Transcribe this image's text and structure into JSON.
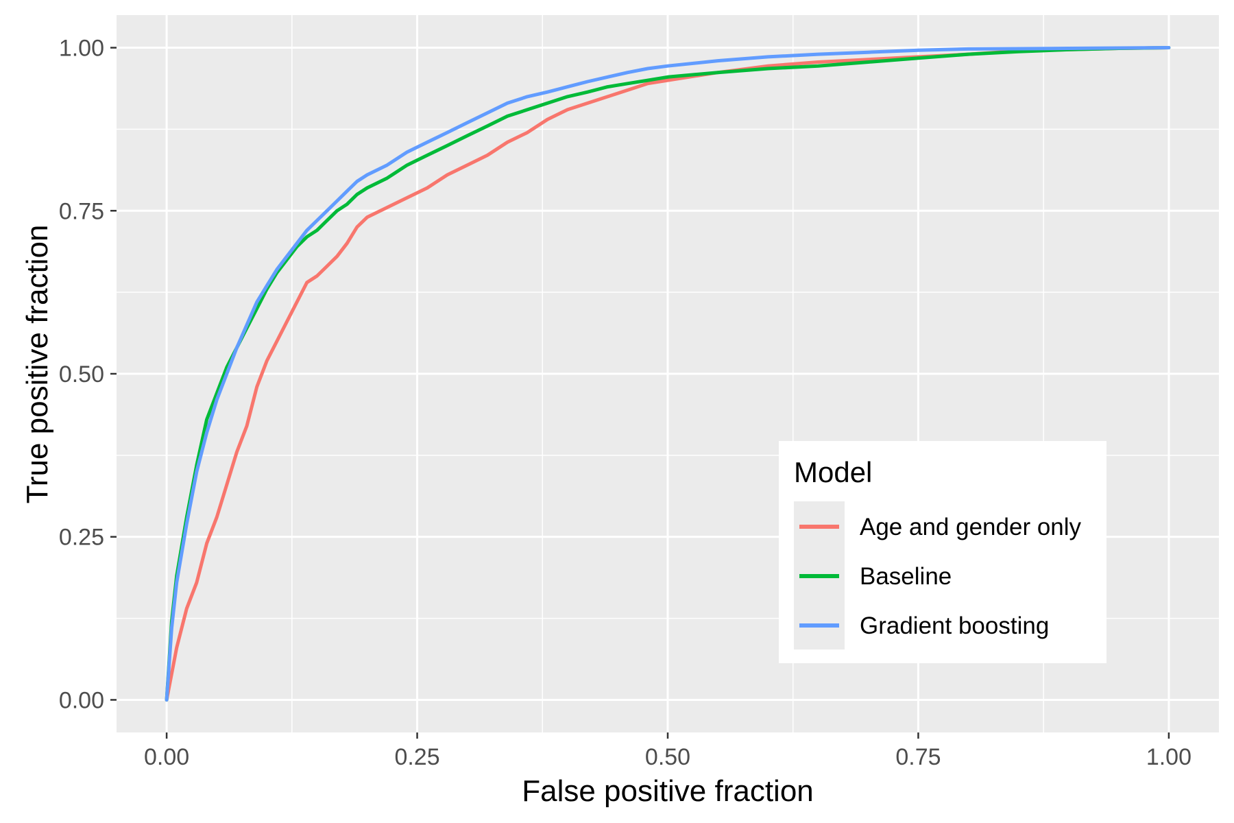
{
  "chart_data": {
    "type": "line",
    "title": "",
    "xlabel": "False positive fraction",
    "ylabel": "True positive fraction",
    "xlim": [
      -0.05,
      1.05
    ],
    "ylim": [
      -0.05,
      1.05
    ],
    "x_ticks": [
      0,
      0.25,
      0.5,
      0.75,
      1
    ],
    "x_tick_labels": [
      "0.00",
      "0.25",
      "0.50",
      "0.75",
      "1.00"
    ],
    "y_ticks": [
      0,
      0.25,
      0.5,
      0.75,
      1
    ],
    "y_tick_labels": [
      "0.00",
      "0.25",
      "0.50",
      "0.75",
      "1.00"
    ],
    "grid": true,
    "background": "#ebebeb",
    "grid_color": "#ffffff",
    "legend": {
      "title": "Model",
      "position": "bottom-right"
    },
    "series": [
      {
        "name": "Age and gender only",
        "color": "#f8766d",
        "points": [
          [
            0.0,
            0.0
          ],
          [
            0.01,
            0.08
          ],
          [
            0.02,
            0.14
          ],
          [
            0.03,
            0.18
          ],
          [
            0.04,
            0.24
          ],
          [
            0.05,
            0.28
          ],
          [
            0.06,
            0.33
          ],
          [
            0.07,
            0.38
          ],
          [
            0.08,
            0.42
          ],
          [
            0.09,
            0.48
          ],
          [
            0.1,
            0.52
          ],
          [
            0.11,
            0.55
          ],
          [
            0.12,
            0.58
          ],
          [
            0.13,
            0.61
          ],
          [
            0.14,
            0.64
          ],
          [
            0.15,
            0.65
          ],
          [
            0.16,
            0.665
          ],
          [
            0.17,
            0.68
          ],
          [
            0.18,
            0.7
          ],
          [
            0.19,
            0.725
          ],
          [
            0.2,
            0.74
          ],
          [
            0.22,
            0.755
          ],
          [
            0.24,
            0.77
          ],
          [
            0.26,
            0.785
          ],
          [
            0.28,
            0.805
          ],
          [
            0.3,
            0.82
          ],
          [
            0.32,
            0.835
          ],
          [
            0.34,
            0.855
          ],
          [
            0.36,
            0.87
          ],
          [
            0.38,
            0.89
          ],
          [
            0.4,
            0.905
          ],
          [
            0.42,
            0.915
          ],
          [
            0.44,
            0.925
          ],
          [
            0.46,
            0.935
          ],
          [
            0.48,
            0.945
          ],
          [
            0.5,
            0.95
          ],
          [
            0.55,
            0.962
          ],
          [
            0.6,
            0.972
          ],
          [
            0.65,
            0.978
          ],
          [
            0.7,
            0.982
          ],
          [
            0.75,
            0.986
          ],
          [
            0.8,
            0.99
          ],
          [
            0.85,
            0.995
          ],
          [
            0.9,
            0.997
          ],
          [
            0.95,
            0.999
          ],
          [
            1.0,
            1.0
          ]
        ]
      },
      {
        "name": "Baseline",
        "color": "#00ba38",
        "points": [
          [
            0.0,
            0.0
          ],
          [
            0.005,
            0.12
          ],
          [
            0.01,
            0.19
          ],
          [
            0.02,
            0.28
          ],
          [
            0.03,
            0.36
          ],
          [
            0.04,
            0.43
          ],
          [
            0.05,
            0.47
          ],
          [
            0.06,
            0.51
          ],
          [
            0.07,
            0.54
          ],
          [
            0.08,
            0.57
          ],
          [
            0.09,
            0.6
          ],
          [
            0.1,
            0.63
          ],
          [
            0.11,
            0.655
          ],
          [
            0.12,
            0.675
          ],
          [
            0.13,
            0.695
          ],
          [
            0.14,
            0.71
          ],
          [
            0.15,
            0.72
          ],
          [
            0.16,
            0.735
          ],
          [
            0.17,
            0.75
          ],
          [
            0.18,
            0.76
          ],
          [
            0.19,
            0.775
          ],
          [
            0.2,
            0.785
          ],
          [
            0.22,
            0.8
          ],
          [
            0.24,
            0.82
          ],
          [
            0.26,
            0.835
          ],
          [
            0.28,
            0.85
          ],
          [
            0.3,
            0.865
          ],
          [
            0.32,
            0.88
          ],
          [
            0.34,
            0.895
          ],
          [
            0.36,
            0.905
          ],
          [
            0.38,
            0.915
          ],
          [
            0.4,
            0.925
          ],
          [
            0.42,
            0.932
          ],
          [
            0.44,
            0.94
          ],
          [
            0.46,
            0.945
          ],
          [
            0.48,
            0.95
          ],
          [
            0.5,
            0.955
          ],
          [
            0.55,
            0.962
          ],
          [
            0.6,
            0.968
          ],
          [
            0.65,
            0.972
          ],
          [
            0.7,
            0.978
          ],
          [
            0.75,
            0.984
          ],
          [
            0.8,
            0.99
          ],
          [
            0.85,
            0.994
          ],
          [
            0.9,
            0.997
          ],
          [
            0.95,
            0.999
          ],
          [
            1.0,
            1.0
          ]
        ]
      },
      {
        "name": "Gradient boosting",
        "color": "#619cff",
        "points": [
          [
            0.0,
            0.0
          ],
          [
            0.005,
            0.11
          ],
          [
            0.01,
            0.18
          ],
          [
            0.02,
            0.27
          ],
          [
            0.03,
            0.35
          ],
          [
            0.04,
            0.41
          ],
          [
            0.05,
            0.46
          ],
          [
            0.06,
            0.5
          ],
          [
            0.07,
            0.54
          ],
          [
            0.08,
            0.575
          ],
          [
            0.09,
            0.61
          ],
          [
            0.1,
            0.635
          ],
          [
            0.11,
            0.66
          ],
          [
            0.12,
            0.68
          ],
          [
            0.13,
            0.7
          ],
          [
            0.14,
            0.72
          ],
          [
            0.15,
            0.735
          ],
          [
            0.16,
            0.75
          ],
          [
            0.17,
            0.765
          ],
          [
            0.18,
            0.78
          ],
          [
            0.19,
            0.795
          ],
          [
            0.2,
            0.805
          ],
          [
            0.22,
            0.82
          ],
          [
            0.24,
            0.84
          ],
          [
            0.26,
            0.855
          ],
          [
            0.28,
            0.87
          ],
          [
            0.3,
            0.885
          ],
          [
            0.32,
            0.9
          ],
          [
            0.34,
            0.915
          ],
          [
            0.36,
            0.925
          ],
          [
            0.38,
            0.932
          ],
          [
            0.4,
            0.94
          ],
          [
            0.42,
            0.948
          ],
          [
            0.44,
            0.955
          ],
          [
            0.46,
            0.962
          ],
          [
            0.48,
            0.968
          ],
          [
            0.5,
            0.972
          ],
          [
            0.55,
            0.98
          ],
          [
            0.6,
            0.986
          ],
          [
            0.65,
            0.99
          ],
          [
            0.7,
            0.993
          ],
          [
            0.75,
            0.996
          ],
          [
            0.8,
            0.998
          ],
          [
            0.9,
            0.999
          ],
          [
            1.0,
            1.0
          ]
        ]
      }
    ]
  }
}
